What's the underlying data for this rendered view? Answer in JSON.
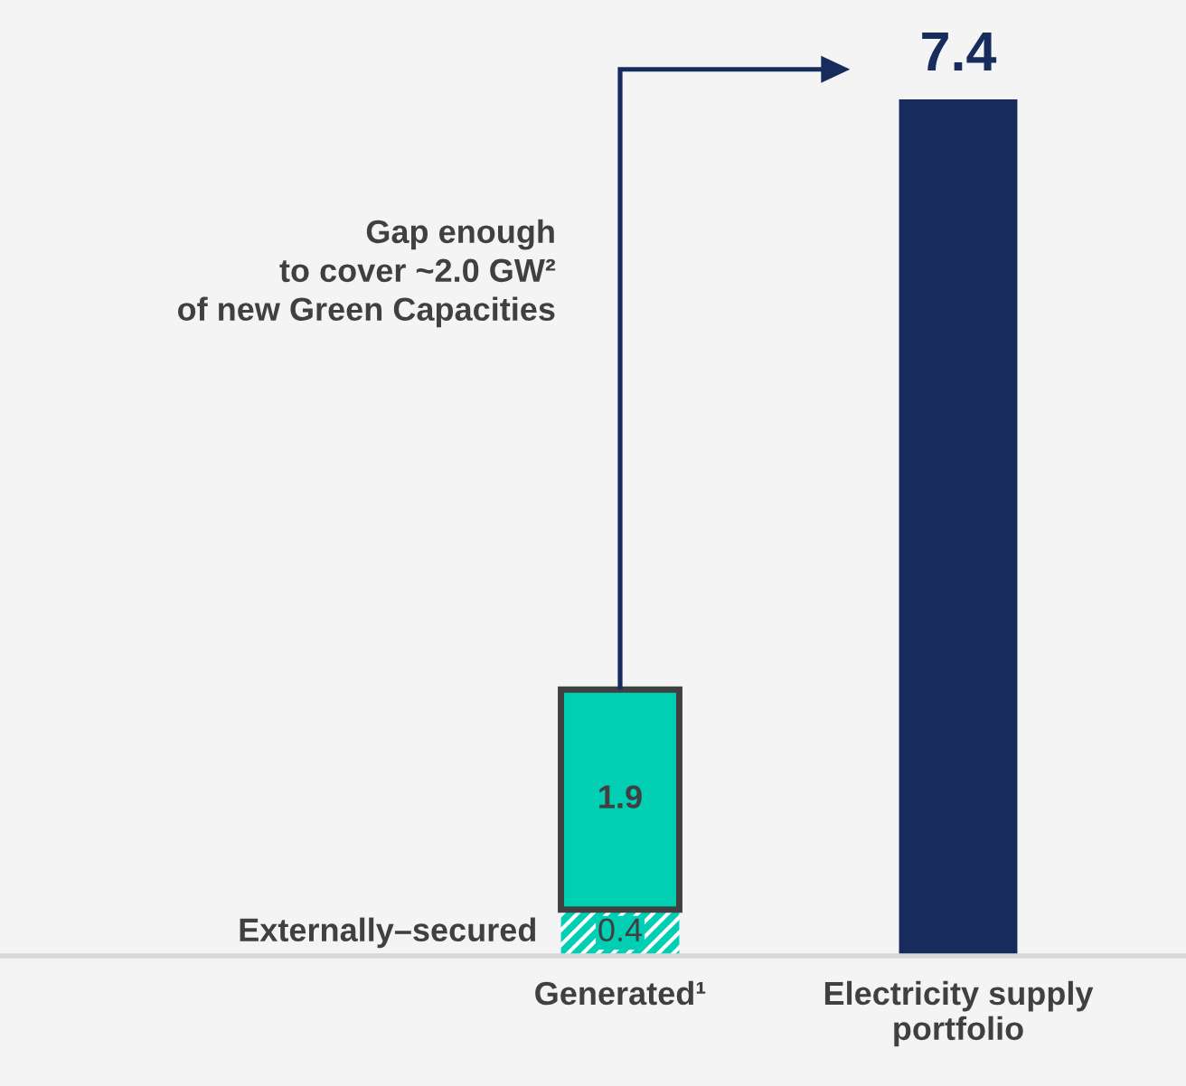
{
  "chart_data": {
    "type": "bar",
    "stacked": true,
    "data_labels": true,
    "categories": [
      "Generated¹",
      "Electricity supply\nportfolio"
    ],
    "series": [
      {
        "name": "Externally–secured",
        "color": "#00cfb4",
        "values": [
          0.4,
          null
        ]
      },
      {
        "color": "#00cfb4",
        "values": [
          1.9,
          null
        ]
      },
      {
        "color": "#172b5c",
        "values": [
          null,
          7.4
        ]
      }
    ],
    "annotations": [
      "Gap enough\nto cover ~2.0 GW²\nof new Green Capacities"
    ],
    "grid": false,
    "legend": false
  }
}
